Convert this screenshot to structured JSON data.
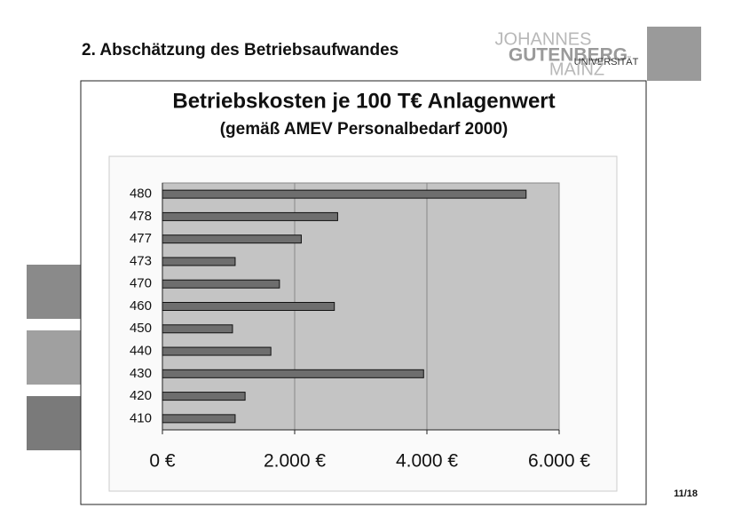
{
  "slide": {
    "title": "2. Abschätzung des Betriebsaufwandes",
    "logo": [
      "JOHANNES",
      "GUTENBERG",
      "UNIVERSITÄT",
      "MAINZ"
    ],
    "page": "11/18"
  },
  "chart_data": {
    "type": "hbar",
    "title": "Betriebskosten je 100 T€ Anlagenwert",
    "subtitle": "(gemäß AMEV Personalbedarf 2000)",
    "categories": [
      "480",
      "478",
      "477",
      "473",
      "470",
      "460",
      "450",
      "440",
      "430",
      "420",
      "410"
    ],
    "values": [
      5500,
      2650,
      2100,
      1100,
      1770,
      2600,
      1060,
      1640,
      3950,
      1250,
      1100
    ],
    "color": "#6e6e6e",
    "xlim": [
      0,
      6000
    ],
    "xticks": [
      {
        "value": 0,
        "label": "0 €"
      },
      {
        "value": 2000,
        "label": "2.000 €"
      },
      {
        "value": 4000,
        "label": "4.000 €"
      },
      {
        "value": 6000,
        "label": "6.000 €"
      }
    ],
    "grid": true
  }
}
